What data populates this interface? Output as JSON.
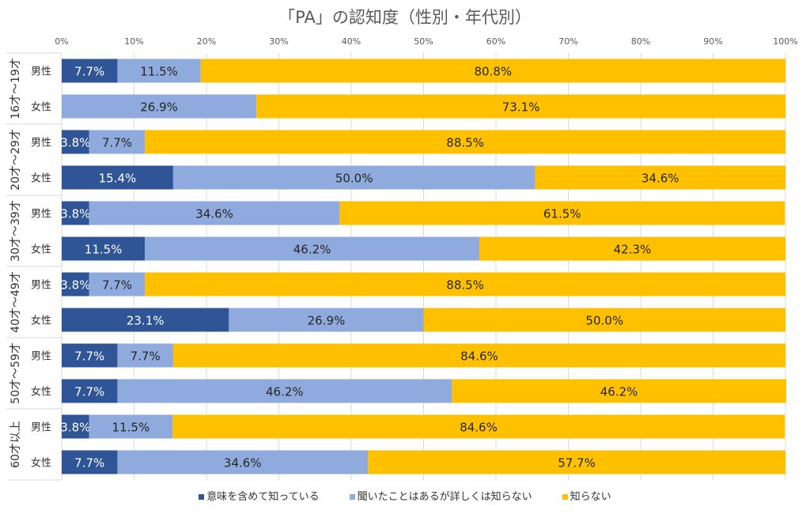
{
  "chart_data": {
    "type": "bar",
    "orientation": "horizontal-stacked-100",
    "title": "「PA」の認知度（性別・年代別）",
    "xlim": [
      0,
      100
    ],
    "x_ticks": [
      "0%",
      "10%",
      "20%",
      "30%",
      "40%",
      "50%",
      "60%",
      "70%",
      "80%",
      "90%",
      "100%"
    ],
    "groups": [
      "16才～19才",
      "20才～29才",
      "30才～39才",
      "40才～49才",
      "50才～59才",
      "60才以上"
    ],
    "categories": [
      {
        "group": 0,
        "label": "男性"
      },
      {
        "group": 0,
        "label": "女性"
      },
      {
        "group": 1,
        "label": "男性"
      },
      {
        "group": 1,
        "label": "女性"
      },
      {
        "group": 2,
        "label": "男性"
      },
      {
        "group": 2,
        "label": "女性"
      },
      {
        "group": 3,
        "label": "男性"
      },
      {
        "group": 3,
        "label": "女性"
      },
      {
        "group": 4,
        "label": "男性"
      },
      {
        "group": 4,
        "label": "女性"
      },
      {
        "group": 5,
        "label": "男性"
      },
      {
        "group": 5,
        "label": "女性"
      }
    ],
    "series": [
      {
        "name": "意味を含めて知っている",
        "color": "#2F5597",
        "label_color": "#ffffff",
        "values": [
          7.7,
          0,
          3.8,
          15.4,
          3.8,
          11.5,
          3.8,
          23.1,
          7.7,
          7.7,
          3.8,
          7.7
        ]
      },
      {
        "name": "聞いたことはあるが詳しくは知らない",
        "color": "#8FAADC",
        "label_color": "#262626",
        "values": [
          11.5,
          26.9,
          7.7,
          50.0,
          34.6,
          46.2,
          7.7,
          26.9,
          7.7,
          46.2,
          11.5,
          34.6
        ]
      },
      {
        "name": "知らない",
        "color": "#FFC000",
        "label_color": "#262626",
        "values": [
          80.8,
          73.1,
          88.5,
          34.6,
          61.5,
          42.3,
          88.5,
          50.0,
          84.6,
          46.2,
          84.6,
          57.7
        ]
      }
    ],
    "legend_position": "bottom",
    "grid": true
  }
}
